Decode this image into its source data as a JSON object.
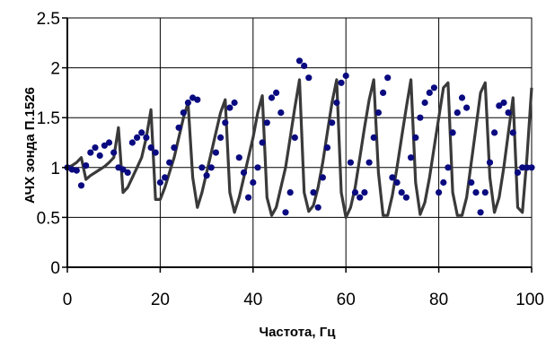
{
  "chart_data": {
    "type": "line",
    "title": "",
    "xlabel": "Частота, Гц",
    "ylabel": "АЧХ зонда П.1526",
    "xlim": [
      0,
      100
    ],
    "ylim": [
      0,
      2.5
    ],
    "x_ticks": [
      "0",
      "20",
      "40",
      "60",
      "80",
      "100"
    ],
    "y_ticks": [
      "0",
      "0.5",
      "1",
      "1.5",
      "2",
      "2.5"
    ],
    "grid": true,
    "legend": "none",
    "colors": {
      "line": "#3a3a3a",
      "markers": "#0a0a80",
      "grid": "#000000"
    },
    "series": [
      {
        "style": "line",
        "x": [
          0,
          1,
          2,
          3,
          4,
          5,
          6,
          7,
          8,
          9,
          10,
          11,
          12,
          13,
          14,
          15,
          16,
          17,
          18,
          19,
          20,
          21,
          22,
          23,
          24,
          25,
          26,
          27,
          28,
          29,
          30,
          31,
          32,
          33,
          34,
          35,
          36,
          37,
          38,
          39,
          40,
          41,
          42,
          43,
          44,
          45,
          46,
          47,
          48,
          49,
          50,
          51,
          52,
          53,
          54,
          55,
          56,
          57,
          58,
          59,
          60,
          61,
          62,
          63,
          64,
          65,
          66,
          67,
          68,
          69,
          70,
          71,
          72,
          73,
          74,
          75,
          76,
          77,
          78,
          79,
          80,
          81,
          82,
          83,
          84,
          85,
          86,
          87,
          88,
          89,
          90,
          91,
          92,
          93,
          94,
          95,
          96,
          97,
          98,
          99,
          100
        ],
        "values": [
          1.0,
          1.02,
          1.05,
          1.1,
          0.88,
          0.92,
          0.95,
          0.98,
          1.01,
          1.05,
          1.1,
          1.4,
          0.75,
          0.8,
          0.9,
          1.0,
          1.1,
          1.3,
          1.58,
          0.68,
          0.68,
          0.8,
          0.95,
          1.1,
          1.3,
          1.5,
          1.65,
          0.9,
          0.6,
          0.75,
          0.95,
          1.15,
          1.35,
          1.55,
          1.68,
          0.75,
          0.55,
          0.7,
          0.9,
          1.1,
          1.3,
          1.55,
          1.72,
          0.7,
          0.52,
          0.6,
          0.8,
          1.0,
          1.3,
          1.6,
          1.88,
          0.75,
          0.56,
          0.62,
          0.8,
          1.05,
          1.35,
          1.65,
          1.88,
          0.75,
          0.5,
          0.6,
          0.8,
          1.1,
          1.4,
          1.68,
          1.88,
          0.95,
          0.52,
          0.52,
          0.72,
          1.0,
          1.3,
          1.6,
          1.88,
          0.85,
          0.53,
          0.65,
          0.9,
          1.2,
          1.5,
          1.8,
          1.85,
          0.75,
          0.52,
          0.52,
          0.7,
          1.05,
          1.4,
          1.75,
          1.85,
          0.9,
          0.55,
          0.7,
          1.0,
          1.35,
          1.7,
          0.6,
          0.55,
          1.1,
          1.8
        ]
      },
      {
        "style": "markers",
        "x": [
          0,
          1,
          2,
          3,
          4,
          5,
          6,
          7,
          8,
          9,
          10,
          11,
          12,
          13,
          14,
          15,
          16,
          17,
          18,
          19,
          20,
          21,
          22,
          23,
          24,
          25,
          26,
          27,
          28,
          29,
          30,
          31,
          32,
          33,
          34,
          35,
          36,
          37,
          38,
          39,
          40,
          41,
          42,
          43,
          44,
          45,
          46,
          47,
          48,
          49,
          50,
          51,
          52,
          53,
          54,
          55,
          56,
          57,
          58,
          59,
          60,
          61,
          62,
          63,
          64,
          65,
          66,
          67,
          68,
          69,
          70,
          71,
          72,
          73,
          74,
          75,
          76,
          77,
          78,
          79,
          80,
          81,
          82,
          83,
          84,
          85,
          86,
          87,
          88,
          89,
          90,
          91,
          92,
          93,
          94,
          95,
          96,
          97,
          98,
          99,
          100
        ],
        "values": [
          1.0,
          0.98,
          0.97,
          0.82,
          1.02,
          1.15,
          1.2,
          1.12,
          1.22,
          1.25,
          1.15,
          1.0,
          0.98,
          0.95,
          1.25,
          1.3,
          1.35,
          1.3,
          1.2,
          1.15,
          0.85,
          0.9,
          1.05,
          1.2,
          1.4,
          1.55,
          1.65,
          1.7,
          1.68,
          1.0,
          0.92,
          1.0,
          1.15,
          1.3,
          1.45,
          1.6,
          1.65,
          1.1,
          0.95,
          0.7,
          0.85,
          1.0,
          1.25,
          1.45,
          1.7,
          1.75,
          1.55,
          0.55,
          0.75,
          1.3,
          2.07,
          2.02,
          1.9,
          0.75,
          0.6,
          0.9,
          1.2,
          1.45,
          1.65,
          1.85,
          1.92,
          1.05,
          0.75,
          0.7,
          0.75,
          1.05,
          1.3,
          1.55,
          1.75,
          1.9,
          0.9,
          0.85,
          0.75,
          0.7,
          1.1,
          1.3,
          1.5,
          1.65,
          1.75,
          1.8,
          0.75,
          0.85,
          1.0,
          1.35,
          1.55,
          1.7,
          1.6,
          0.85,
          0.75,
          0.55,
          0.75,
          1.05,
          1.35,
          1.62,
          1.65,
          1.55,
          1.35,
          0.95,
          1.0,
          1.0,
          1.0
        ]
      }
    ]
  }
}
